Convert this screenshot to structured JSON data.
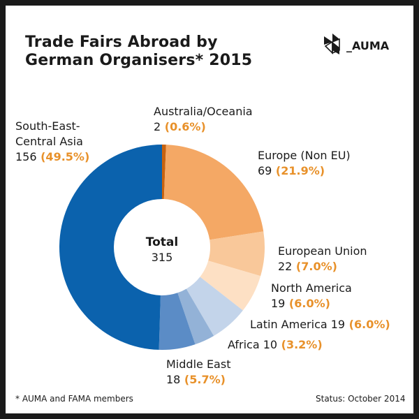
{
  "title": {
    "line1": "Trade Fairs Abroad by",
    "line2": "German Organisers* 2015"
  },
  "logo": {
    "text": "_AUMA"
  },
  "colors": {
    "accent": "#e8912a",
    "text": "#1a1a1a"
  },
  "footnote": "* AUMA and FAMA members",
  "status": "Status: October 2014",
  "chart_data": {
    "type": "pie",
    "style": "donut",
    "center_label": "Total",
    "center_value": "315",
    "slices": [
      {
        "line1": "Australia/Oceania",
        "line2": "2",
        "pct": "(0.6%)",
        "value": 2,
        "color": "#c8620e"
      },
      {
        "line1": "Europe (Non EU)",
        "line2": "69",
        "pct": "(21.9%)",
        "value": 69,
        "color": "#f4a865"
      },
      {
        "line1": "European Union",
        "line2": "22",
        "pct": "(7.0%)",
        "value": 22,
        "color": "#f9c89a"
      },
      {
        "line1": "North America",
        "line2": "19",
        "pct": "(6.0%)",
        "value": 19,
        "color": "#fde0c4"
      },
      {
        "line1": "Latin America 19",
        "line2": "",
        "pct": "(6.0%)",
        "value": 19,
        "color": "#c3d4ea"
      },
      {
        "line1": "Africa 10",
        "line2": "",
        "pct": "(3.2%)",
        "value": 10,
        "color": "#93b2d7"
      },
      {
        "line1": "Middle East",
        "line2": "18",
        "pct": "(5.7%)",
        "value": 18,
        "color": "#5b8cc6"
      },
      {
        "line1": "South-East-",
        "line2": "Central Asia",
        "line3": "156",
        "pct": "(49.5%)",
        "value": 156,
        "color": "#0b62ad"
      }
    ]
  }
}
